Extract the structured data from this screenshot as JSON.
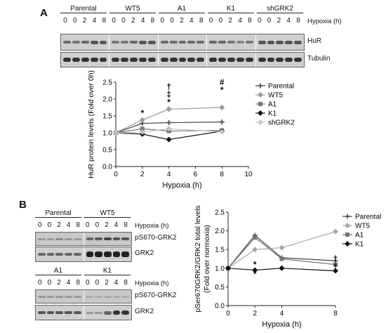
{
  "panel_labels": [
    "A",
    "B"
  ],
  "panel_a": {
    "group_labels": [
      "Parental",
      "WT5",
      "A1",
      "K1",
      "shGRK2"
    ],
    "lane_labels": [
      "0",
      "0",
      "2",
      "4",
      "8"
    ],
    "hypoxia_label": "Hypoxia (h)",
    "blot_labels": [
      "HuR",
      "Tubulin"
    ]
  },
  "panel_b": {
    "top_group_labels": [
      "Parental",
      "WT5"
    ],
    "bottom_group_labels": [
      "A1",
      "K1"
    ],
    "lane_labels": [
      "0",
      "0",
      "2",
      "4",
      "8"
    ],
    "hypoxia_label": "Hypoxia (h)",
    "blot_labels": [
      "pS670-GRK2",
      "GRK2"
    ]
  },
  "chart_data": [
    {
      "type": "line",
      "xlabel": "Hypoxia (h)",
      "ylabel": "HuR protein levels (Fold over 0h)",
      "xlim": [
        0,
        10
      ],
      "ylim": [
        0,
        2.5
      ],
      "xticks": [
        0,
        2,
        4,
        6,
        8,
        10
      ],
      "yticks": [
        0,
        0.5,
        1.0,
        1.5,
        2.0,
        2.5
      ],
      "legend_position": "right",
      "x": [
        0,
        2,
        4,
        8
      ],
      "series": [
        {
          "name": "Parental",
          "values": [
            1.0,
            1.28,
            1.3,
            1.32
          ],
          "color": "#444444"
        },
        {
          "name": "WT5",
          "values": [
            1.0,
            1.38,
            1.7,
            1.75
          ],
          "color": "#9a9a9a"
        },
        {
          "name": "A1",
          "values": [
            1.0,
            1.12,
            1.05,
            1.07
          ],
          "color": "#777777"
        },
        {
          "name": "K1",
          "values": [
            1.0,
            0.96,
            0.8,
            1.05
          ],
          "color": "#111111"
        },
        {
          "name": "shGRK2",
          "values": [
            1.0,
            1.02,
            1.12,
            1.03
          ],
          "color": "#c4c4c4"
        }
      ],
      "annotations": [
        {
          "x": 2,
          "y": 1.42,
          "text": "*"
        },
        {
          "x": 4,
          "y": 1.74,
          "text": "*"
        },
        {
          "x": 4,
          "y": 1.74,
          "text": "‡"
        },
        {
          "x": 4,
          "y": 1.74,
          "text": "†"
        },
        {
          "x": 8,
          "y": 2.1,
          "text": "*"
        },
        {
          "x": 8,
          "y": 2.1,
          "text": "#"
        }
      ]
    },
    {
      "type": "line",
      "xlabel": "Hypoxia (h)",
      "ylabel": "pSer670GRK2/GRK2 total levels (Fold over normoxia)",
      "xlim": [
        0,
        8
      ],
      "ylim": [
        0,
        2.5
      ],
      "xticks": [
        0,
        2,
        4,
        8
      ],
      "yticks": [
        0,
        0.5,
        1.0,
        1.5,
        2.0,
        2.5
      ],
      "legend_position": "top-right",
      "x": [
        0,
        2,
        4,
        8
      ],
      "series": [
        {
          "name": "Parental",
          "values": [
            1.0,
            1.88,
            1.28,
            1.2
          ],
          "color": "#444444"
        },
        {
          "name": "WT5",
          "values": [
            1.0,
            1.5,
            1.55,
            1.98
          ],
          "color": "#a8a8a8"
        },
        {
          "name": "A1",
          "values": [
            1.0,
            1.82,
            1.25,
            1.1
          ],
          "color": "#777777"
        },
        {
          "name": "K1",
          "values": [
            1.0,
            0.95,
            1.0,
            0.93
          ],
          "color": "#111111"
        }
      ],
      "annotations": [
        {
          "x": 2,
          "y": 0.95,
          "text": "*"
        },
        {
          "x": 2,
          "y": 0.7,
          "text": "*"
        },
        {
          "x": 8,
          "y": 1.1,
          "text": "†"
        },
        {
          "x": 8,
          "y": 0.88,
          "text": "†"
        }
      ]
    }
  ]
}
